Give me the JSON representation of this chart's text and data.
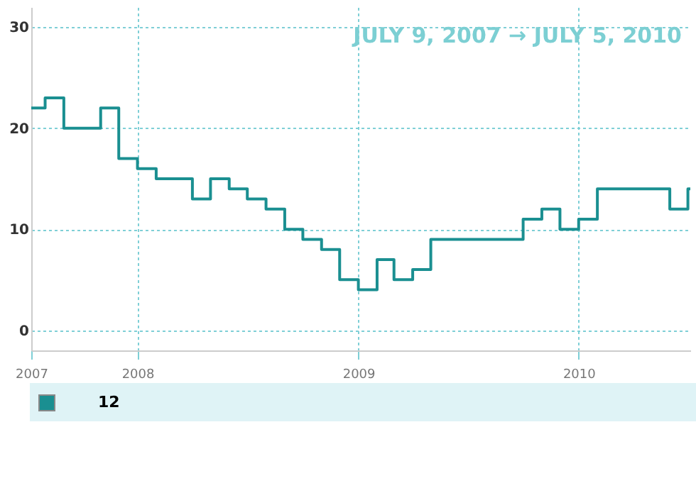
{
  "chart_data": {
    "type": "step",
    "title": "JULY 9, 2007 → JULY 5, 2010",
    "x": [
      "2007-07-09",
      "2007-08",
      "2007-09",
      "2007-11",
      "2007-12",
      "2008-01",
      "2008-02",
      "2008-04",
      "2008-05",
      "2008-06",
      "2008-07",
      "2008-08",
      "2008-09",
      "2008-10",
      "2008-11",
      "2008-12",
      "2009-01",
      "2009-02",
      "2009-03",
      "2009-04",
      "2009-05",
      "2009-10",
      "2009-11",
      "2009-12",
      "2010-01",
      "2010-02",
      "2010-06",
      "2010-07",
      "2010-07-05"
    ],
    "values": [
      22,
      23,
      20,
      22,
      17,
      16,
      15,
      13,
      15,
      14,
      13,
      12,
      10,
      9,
      8,
      5,
      4,
      7,
      5,
      6,
      9,
      11,
      12,
      10,
      11,
      14,
      12,
      14,
      14
    ],
    "color": "#1a8f91",
    "xlim": [
      "2007-07-09",
      "2010-07-05"
    ],
    "xticks": [
      {
        "value": "2007-07-09",
        "label": "2007"
      },
      {
        "value": "2008-01-01",
        "label": "2008"
      },
      {
        "value": "2009-01-01",
        "label": "2009"
      },
      {
        "value": "2010-01-01",
        "label": "2010"
      }
    ],
    "ylim": [
      -2,
      32
    ],
    "yticks": [
      0,
      10,
      20,
      30
    ],
    "grid": true,
    "annotations": [
      "12"
    ]
  }
}
